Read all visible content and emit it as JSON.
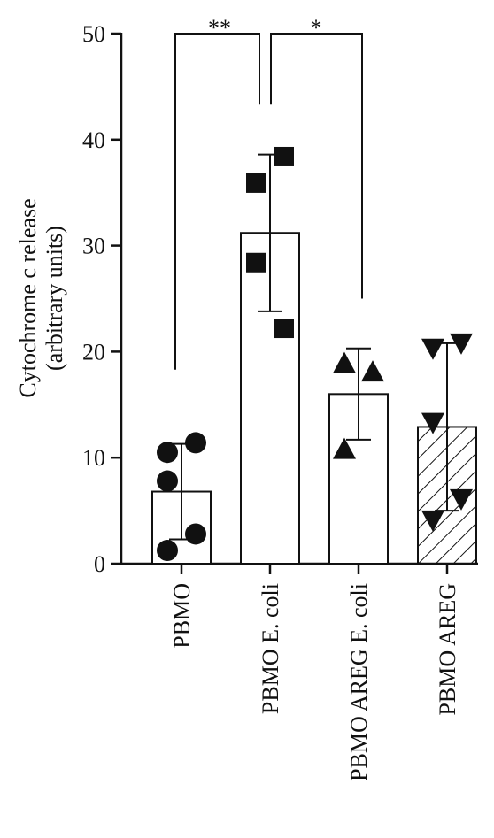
{
  "chart_data": {
    "type": "bar",
    "ylabel": [
      "Cytochrome c release",
      "(arbitrary units)"
    ],
    "categories": [
      "PBMO",
      "PBMO E. coli",
      "PBMO AREG E. coli",
      "PBMO AREG"
    ],
    "values": [
      6.8,
      31.2,
      16.0,
      12.9
    ],
    "errors": [
      4.5,
      7.4,
      4.3,
      7.9
    ],
    "points": [
      [
        10.5,
        11.4,
        7.8,
        2.8,
        1.25
      ],
      [
        35.9,
        38.4,
        28.4,
        22.2
      ],
      [
        18.9,
        18.1,
        10.8
      ],
      [
        20.3,
        20.8,
        13.3,
        6.1,
        4.1
      ]
    ],
    "markers": [
      "circle",
      "square",
      "triangle-up",
      "triangle-down"
    ],
    "hatch": [
      false,
      false,
      false,
      true
    ],
    "color": "#ffffff",
    "annotations": [
      "**",
      "*"
    ],
    "ylim": [
      0,
      50
    ],
    "yticks": [
      0,
      10,
      20,
      30,
      40,
      50
    ]
  }
}
